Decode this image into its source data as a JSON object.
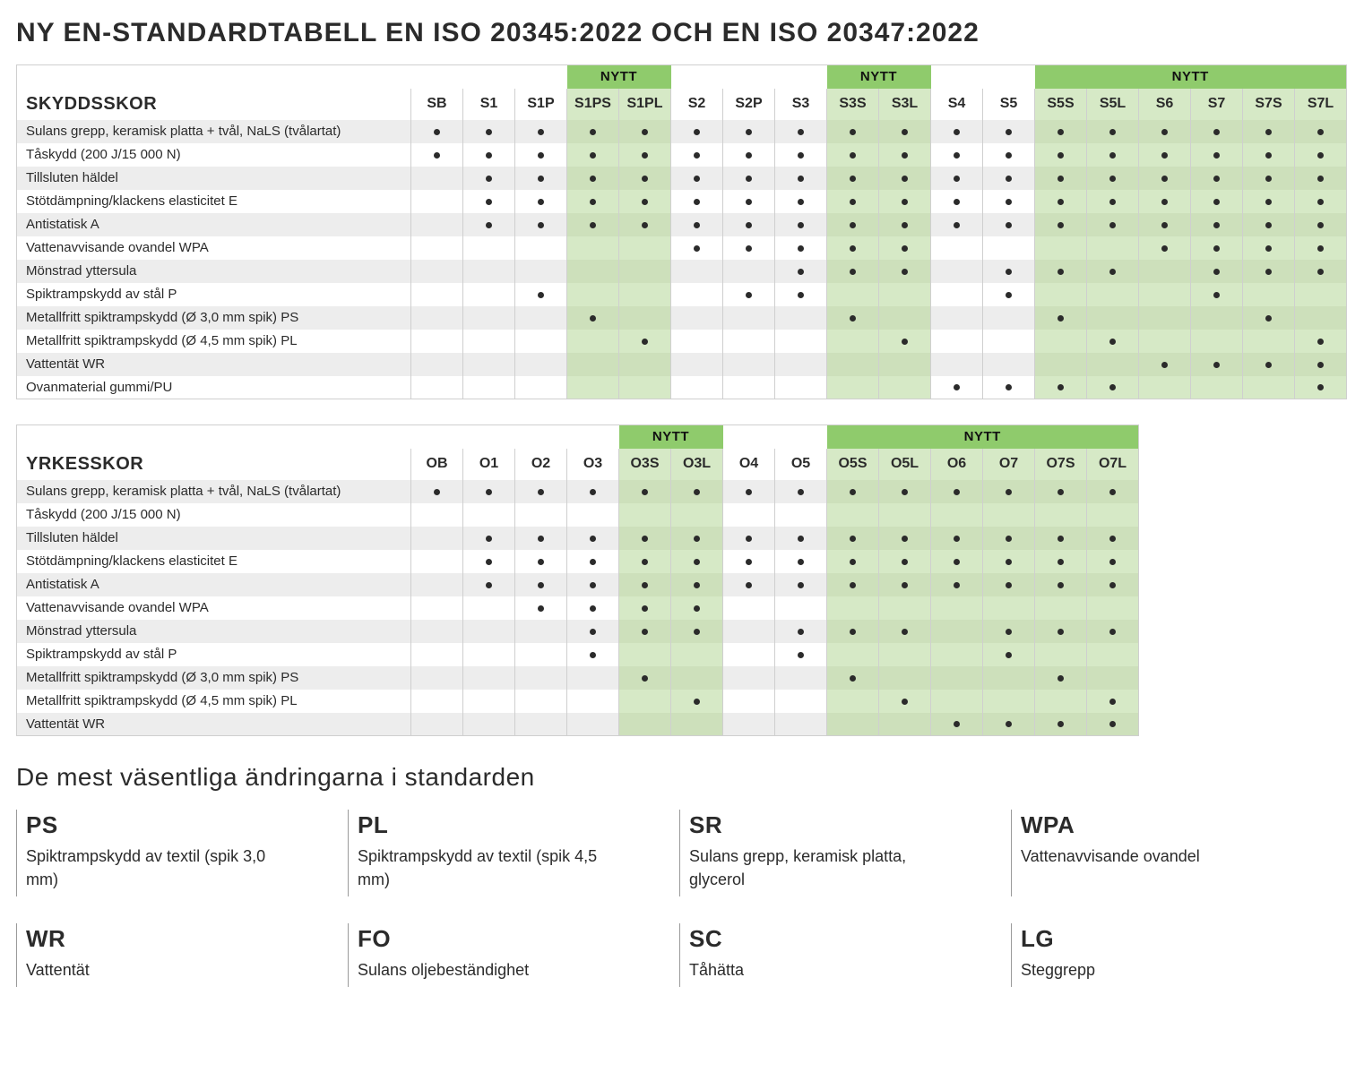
{
  "title": "NY EN-STANDARDTABELL EN ISO 20345:2022 OCH EN ISO 20347:2022",
  "subheading": "De mest väsentliga ändringarna i standarden",
  "nytt_label": "NYTT",
  "colors": {
    "badge": "#8fcb6c",
    "green_cell": "#d6e9c6",
    "stripe": "#ededed",
    "border": "#cfcfcf",
    "text": "#2b2b2b"
  },
  "table1": {
    "heading": "SKYDDSSKOR",
    "columns": [
      {
        "label": "SB",
        "new": false
      },
      {
        "label": "S1",
        "new": false
      },
      {
        "label": "S1P",
        "new": false
      },
      {
        "label": "S1PS",
        "new": true,
        "group": "a"
      },
      {
        "label": "S1PL",
        "new": true,
        "group": "a"
      },
      {
        "label": "S2",
        "new": false
      },
      {
        "label": "S2P",
        "new": false
      },
      {
        "label": "S3",
        "new": false
      },
      {
        "label": "S3S",
        "new": true,
        "group": "b"
      },
      {
        "label": "S3L",
        "new": true,
        "group": "b"
      },
      {
        "label": "S4",
        "new": false
      },
      {
        "label": "S5",
        "new": false
      },
      {
        "label": "S5S",
        "new": true,
        "group": "c"
      },
      {
        "label": "S5L",
        "new": true,
        "group": "c"
      },
      {
        "label": "S6",
        "new": true,
        "group": "c"
      },
      {
        "label": "S7",
        "new": true,
        "group": "c"
      },
      {
        "label": "S7S",
        "new": true,
        "group": "c"
      },
      {
        "label": "S7L",
        "new": true,
        "group": "c"
      }
    ],
    "rows": [
      {
        "label": "Sulans grepp, keramisk platta + tvål, NaLS (tvålartat)",
        "dots": [
          1,
          1,
          1,
          1,
          1,
          1,
          1,
          1,
          1,
          1,
          1,
          1,
          1,
          1,
          1,
          1,
          1,
          1
        ]
      },
      {
        "label": "Tåskydd (200 J/15 000 N)",
        "dots": [
          1,
          1,
          1,
          1,
          1,
          1,
          1,
          1,
          1,
          1,
          1,
          1,
          1,
          1,
          1,
          1,
          1,
          1
        ]
      },
      {
        "label": "Tillsluten häldel",
        "dots": [
          0,
          1,
          1,
          1,
          1,
          1,
          1,
          1,
          1,
          1,
          1,
          1,
          1,
          1,
          1,
          1,
          1,
          1
        ]
      },
      {
        "label": "Stötdämpning/klackens elasticitet E",
        "dots": [
          0,
          1,
          1,
          1,
          1,
          1,
          1,
          1,
          1,
          1,
          1,
          1,
          1,
          1,
          1,
          1,
          1,
          1
        ]
      },
      {
        "label": "Antistatisk A",
        "dots": [
          0,
          1,
          1,
          1,
          1,
          1,
          1,
          1,
          1,
          1,
          1,
          1,
          1,
          1,
          1,
          1,
          1,
          1
        ]
      },
      {
        "label": "Vattenavvisande ovandel WPA",
        "dots": [
          0,
          0,
          0,
          0,
          0,
          1,
          1,
          1,
          1,
          1,
          0,
          0,
          0,
          0,
          1,
          1,
          1,
          1
        ]
      },
      {
        "label": "Mönstrad yttersula",
        "dots": [
          0,
          0,
          0,
          0,
          0,
          0,
          0,
          1,
          1,
          1,
          0,
          1,
          1,
          1,
          0,
          1,
          1,
          1
        ]
      },
      {
        "label": "Spiktrampskydd av stål P",
        "dots": [
          0,
          0,
          1,
          0,
          0,
          0,
          1,
          1,
          0,
          0,
          0,
          1,
          0,
          0,
          0,
          1,
          0,
          0
        ]
      },
      {
        "label": "Metallfritt spiktrampskydd (Ø 3,0 mm spik) PS",
        "dots": [
          0,
          0,
          0,
          1,
          0,
          0,
          0,
          0,
          1,
          0,
          0,
          0,
          1,
          0,
          0,
          0,
          1,
          0
        ]
      },
      {
        "label": "Metallfritt spiktrampskydd (Ø 4,5 mm spik) PL",
        "dots": [
          0,
          0,
          0,
          0,
          1,
          0,
          0,
          0,
          0,
          1,
          0,
          0,
          0,
          1,
          0,
          0,
          0,
          1
        ]
      },
      {
        "label": "Vattentät WR",
        "dots": [
          0,
          0,
          0,
          0,
          0,
          0,
          0,
          0,
          0,
          0,
          0,
          0,
          0,
          0,
          1,
          1,
          1,
          1
        ]
      },
      {
        "label": "Ovanmaterial gummi/PU",
        "dots": [
          0,
          0,
          0,
          0,
          0,
          0,
          0,
          0,
          0,
          0,
          1,
          1,
          1,
          1,
          0,
          0,
          0,
          1
        ]
      }
    ]
  },
  "table2": {
    "heading": "YRKESSKOR",
    "columns": [
      {
        "label": "OB",
        "new": false
      },
      {
        "label": "O1",
        "new": false
      },
      {
        "label": "O2",
        "new": false
      },
      {
        "label": "O3",
        "new": false
      },
      {
        "label": "O3S",
        "new": true,
        "group": "a"
      },
      {
        "label": "O3L",
        "new": true,
        "group": "a"
      },
      {
        "label": "O4",
        "new": false
      },
      {
        "label": "O5",
        "new": false
      },
      {
        "label": "O5S",
        "new": true,
        "group": "b"
      },
      {
        "label": "O5L",
        "new": true,
        "group": "b"
      },
      {
        "label": "O6",
        "new": true,
        "group": "b"
      },
      {
        "label": "O7",
        "new": true,
        "group": "b"
      },
      {
        "label": "O7S",
        "new": true,
        "group": "b"
      },
      {
        "label": "O7L",
        "new": true,
        "group": "b"
      }
    ],
    "rows": [
      {
        "label": "Sulans grepp, keramisk platta + tvål, NaLS (tvålartat)",
        "dots": [
          1,
          1,
          1,
          1,
          1,
          1,
          1,
          1,
          1,
          1,
          1,
          1,
          1,
          1
        ]
      },
      {
        "label": "Tåskydd (200 J/15 000 N)",
        "dots": [
          0,
          0,
          0,
          0,
          0,
          0,
          0,
          0,
          0,
          0,
          0,
          0,
          0,
          0
        ]
      },
      {
        "label": "Tillsluten häldel",
        "dots": [
          0,
          1,
          1,
          1,
          1,
          1,
          1,
          1,
          1,
          1,
          1,
          1,
          1,
          1
        ]
      },
      {
        "label": "Stötdämpning/klackens elasticitet E",
        "dots": [
          0,
          1,
          1,
          1,
          1,
          1,
          1,
          1,
          1,
          1,
          1,
          1,
          1,
          1
        ]
      },
      {
        "label": "Antistatisk A",
        "dots": [
          0,
          1,
          1,
          1,
          1,
          1,
          1,
          1,
          1,
          1,
          1,
          1,
          1,
          1
        ]
      },
      {
        "label": "Vattenavvisande ovandel WPA",
        "dots": [
          0,
          0,
          1,
          1,
          1,
          1,
          0,
          0,
          0,
          0,
          0,
          0,
          0,
          0
        ]
      },
      {
        "label": "Mönstrad yttersula",
        "dots": [
          0,
          0,
          0,
          1,
          1,
          1,
          0,
          1,
          1,
          1,
          0,
          1,
          1,
          1
        ]
      },
      {
        "label": "Spiktrampskydd av stål P",
        "dots": [
          0,
          0,
          0,
          1,
          0,
          0,
          0,
          1,
          0,
          0,
          0,
          1,
          0,
          0
        ]
      },
      {
        "label": "Metallfritt spiktrampskydd (Ø 3,0 mm spik) PS",
        "dots": [
          0,
          0,
          0,
          0,
          1,
          0,
          0,
          0,
          1,
          0,
          0,
          0,
          1,
          0
        ]
      },
      {
        "label": "Metallfritt spiktrampskydd (Ø 4,5 mm spik) PL",
        "dots": [
          0,
          0,
          0,
          0,
          0,
          1,
          0,
          0,
          0,
          1,
          0,
          0,
          0,
          1
        ]
      },
      {
        "label": "Vattentät WR",
        "dots": [
          0,
          0,
          0,
          0,
          0,
          0,
          0,
          0,
          0,
          0,
          1,
          1,
          1,
          1
        ]
      }
    ]
  },
  "definitions": [
    {
      "abbr": "PS",
      "desc": "Spiktrampskydd av textil (spik 3,0 mm)"
    },
    {
      "abbr": "PL",
      "desc": "Spiktrampskydd av textil (spik 4,5 mm)"
    },
    {
      "abbr": "SR",
      "desc": "Sulans grepp, keramisk platta, glycerol"
    },
    {
      "abbr": "WPA",
      "desc": "Vattenavvisande ovandel"
    },
    {
      "abbr": "WR",
      "desc": "Vattentät"
    },
    {
      "abbr": "FO",
      "desc": "Sulans oljebeständighet"
    },
    {
      "abbr": "SC",
      "desc": "Tåhätta"
    },
    {
      "abbr": "LG",
      "desc": "Steggrepp"
    }
  ]
}
